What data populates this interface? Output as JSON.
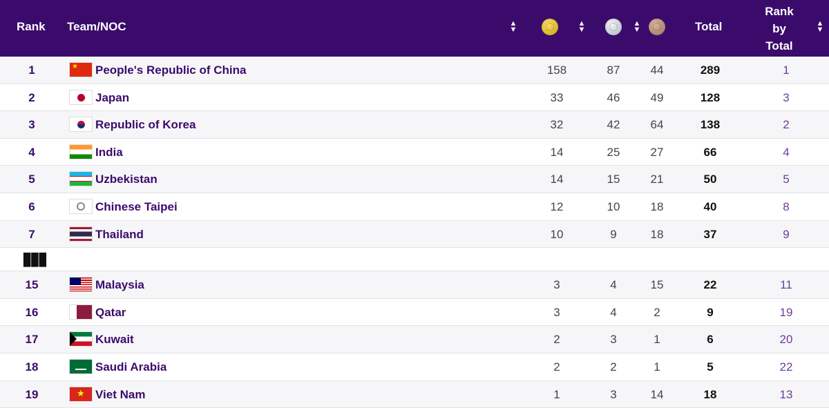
{
  "header": {
    "rank": "Rank",
    "team": "Team/NOC",
    "total": "Total",
    "rank_by_total_lines": [
      "Rank",
      "by",
      "Total"
    ],
    "medal_icons": [
      "gold-medal-icon",
      "silver-medal-icon",
      "bronze-medal-icon"
    ]
  },
  "colors": {
    "header_bg": "#3b0b6b",
    "name_text": "#3b0b6b"
  },
  "rows_top": [
    {
      "rank": "1",
      "flag": "china-flag-icon",
      "name": "People's Republic of China",
      "gold": "158",
      "silver": "87",
      "bronze": "44",
      "total": "289",
      "rank_by_total": "1"
    },
    {
      "rank": "2",
      "flag": "japan-flag-icon",
      "name": "Japan",
      "gold": "33",
      "silver": "46",
      "bronze": "49",
      "total": "128",
      "rank_by_total": "3"
    },
    {
      "rank": "3",
      "flag": "korea-flag-icon",
      "name": "Republic of Korea",
      "gold": "32",
      "silver": "42",
      "bronze": "64",
      "total": "138",
      "rank_by_total": "2"
    },
    {
      "rank": "4",
      "flag": "india-flag-icon",
      "name": "India",
      "gold": "14",
      "silver": "25",
      "bronze": "27",
      "total": "66",
      "rank_by_total": "4"
    },
    {
      "rank": "5",
      "flag": "uzbekistan-flag-icon",
      "name": "Uzbekistan",
      "gold": "14",
      "silver": "15",
      "bronze": "21",
      "total": "50",
      "rank_by_total": "5"
    },
    {
      "rank": "6",
      "flag": "chinese-taipei-flag-icon",
      "name": "Chinese Taipei",
      "gold": "12",
      "silver": "10",
      "bronze": "18",
      "total": "40",
      "rank_by_total": "8"
    },
    {
      "rank": "7",
      "flag": "thailand-flag-icon",
      "name": "Thailand",
      "gold": "10",
      "silver": "9",
      "bronze": "18",
      "total": "37",
      "rank_by_total": "9"
    }
  ],
  "ellipsis": "▮▮▮",
  "rows_bottom": [
    {
      "rank": "15",
      "flag": "malaysia-flag-icon",
      "name": "Malaysia",
      "gold": "3",
      "silver": "4",
      "bronze": "15",
      "total": "22",
      "rank_by_total": "11"
    },
    {
      "rank": "16",
      "flag": "qatar-flag-icon",
      "name": "Qatar",
      "gold": "3",
      "silver": "4",
      "bronze": "2",
      "total": "9",
      "rank_by_total": "19"
    },
    {
      "rank": "17",
      "flag": "kuwait-flag-icon",
      "name": "Kuwait",
      "gold": "2",
      "silver": "3",
      "bronze": "1",
      "total": "6",
      "rank_by_total": "20"
    },
    {
      "rank": "18",
      "flag": "saudi-arabia-flag-icon",
      "name": "Saudi Arabia",
      "gold": "2",
      "silver": "2",
      "bronze": "1",
      "total": "5",
      "rank_by_total": "22"
    },
    {
      "rank": "19",
      "flag": "viet-nam-flag-icon",
      "name": "Viet Nam",
      "gold": "1",
      "silver": "3",
      "bronze": "14",
      "total": "18",
      "rank_by_total": "13"
    }
  ]
}
